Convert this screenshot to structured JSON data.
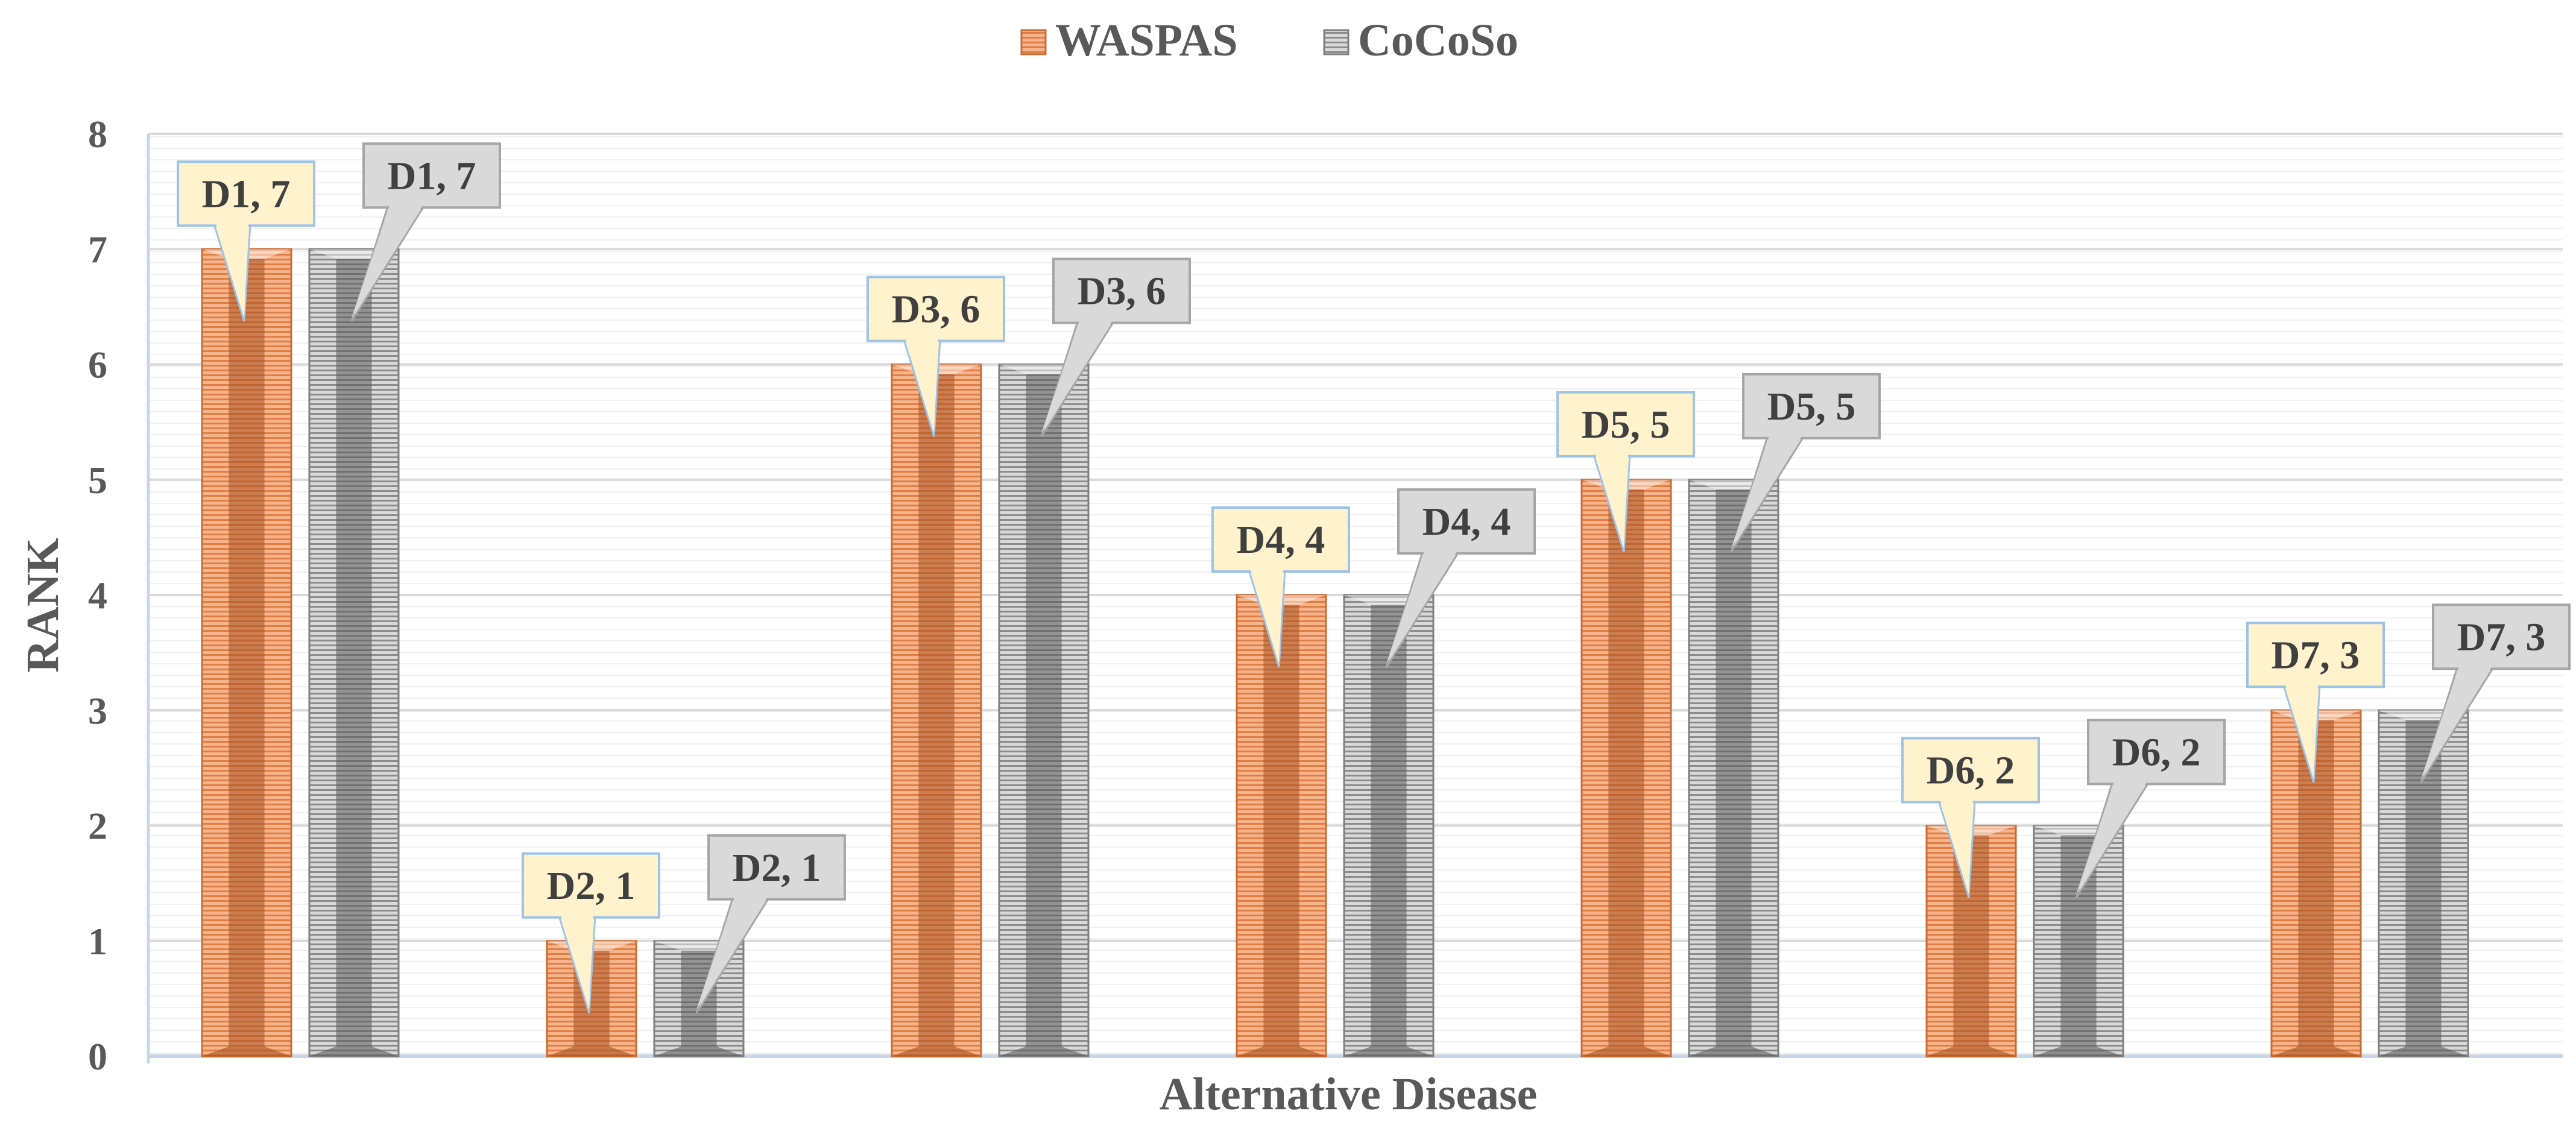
{
  "chart_data": {
    "type": "bar",
    "title": "",
    "xlabel": "Alternative Disease",
    "ylabel": "RANK",
    "ylim": [
      0,
      8
    ],
    "yticks": [
      "0",
      "1",
      "2",
      "3",
      "4",
      "5",
      "6",
      "7",
      "8"
    ],
    "categories": [
      "D1",
      "D2",
      "D3",
      "D4",
      "D5",
      "D6",
      "D7"
    ],
    "legend_position": "top-center",
    "series": [
      {
        "name": "WASPAS",
        "values": [
          7,
          1,
          6,
          4,
          5,
          2,
          3
        ],
        "color": "#f4a97c",
        "data_labels": [
          "D1, 7",
          "D2, 1",
          "D3, 6",
          "D4, 4",
          "D5, 5",
          "D6, 2",
          "D7, 3"
        ]
      },
      {
        "name": "CoCoSo",
        "values": [
          7,
          1,
          6,
          4,
          5,
          2,
          3
        ],
        "color": "#bfbfbf",
        "data_labels": [
          "D1, 7",
          "D2, 1",
          "D3, 6",
          "D4, 4",
          "D5, 5",
          "D6, 2",
          "D7, 3"
        ]
      }
    ]
  }
}
